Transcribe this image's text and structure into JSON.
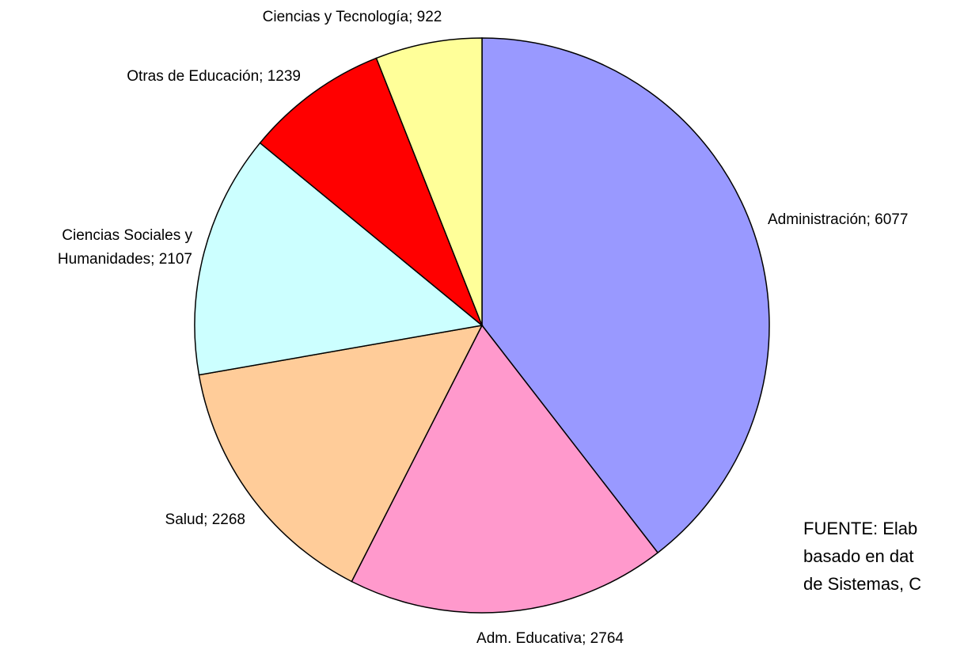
{
  "chart_data": {
    "type": "pie",
    "categories": [
      "Administración",
      "Adm. Educativa",
      "Salud",
      "Ciencias Sociales y Humanidades",
      "Otras de Educación",
      "Ciencias y Tecnología"
    ],
    "values": [
      6077,
      2764,
      2268,
      2107,
      1239,
      922
    ],
    "colors": [
      "#9999ff",
      "#ff99cc",
      "#ffcc99",
      "#ccffff",
      "#ff0000",
      "#ffff99"
    ],
    "label_separator": "; ",
    "note": [
      "FUENTE: Elab",
      "basado en dat",
      "de Sistemas, C"
    ]
  }
}
